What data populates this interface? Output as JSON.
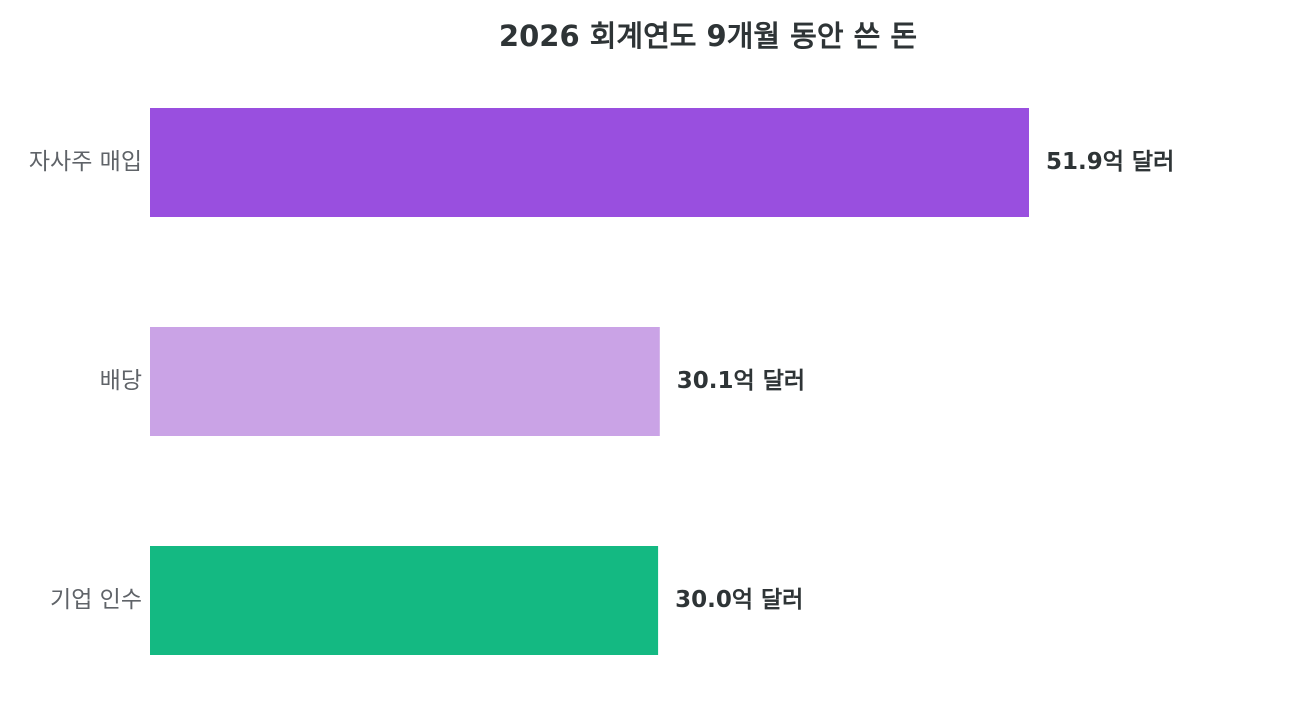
{
  "chart_data": {
    "type": "bar",
    "orientation": "horizontal",
    "title": "2026 회계연도 9개월 동안 쓴 돈",
    "categories": [
      "자사주 매입",
      "배당",
      "기업 인수"
    ],
    "values": [
      51.9,
      30.1,
      30.0
    ],
    "value_labels": [
      "51.9억 달러",
      "30.1억 달러",
      "30.0억 달러"
    ],
    "value_unit": "억 달러",
    "colors": [
      "#994fdf",
      "#caa3e6",
      "#14b982"
    ],
    "grid": false,
    "legend": "none"
  }
}
